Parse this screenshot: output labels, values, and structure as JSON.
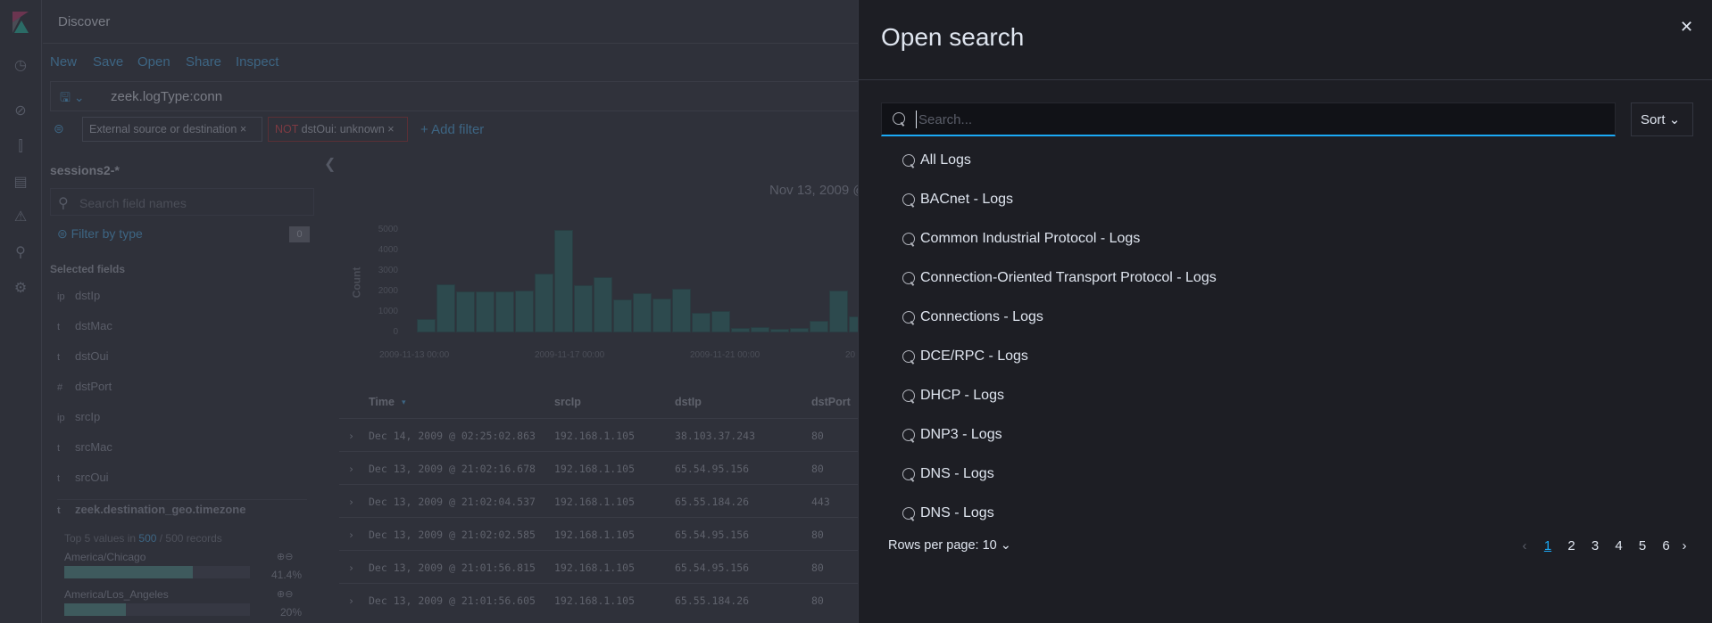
{
  "app": {
    "title": "Discover"
  },
  "nav": {
    "icons": [
      "clock-icon",
      "compass-icon",
      "visualize-icon",
      "dashboard-icon",
      "alert-icon",
      "wrench-icon",
      "gear-icon"
    ]
  },
  "menu": {
    "new": "New",
    "save": "Save",
    "open": "Open",
    "share": "Share",
    "inspect": "Inspect"
  },
  "query": {
    "value": "zeek.logType:conn"
  },
  "filters": [
    {
      "label": "External source or destination"
    },
    {
      "prefix": "NOT",
      "label": "dstOui: unknown"
    }
  ],
  "add_filter": "+ Add filter",
  "sidebar": {
    "index": "sessions2-*",
    "search_placeholder": "Search field names",
    "filter_by_type": "Filter by type",
    "filter_count": "0",
    "selected_fields": "Selected fields",
    "fields": [
      {
        "type": "ip",
        "name": "dstIp"
      },
      {
        "type": "t",
        "name": "dstMac"
      },
      {
        "type": "t",
        "name": "dstOui"
      },
      {
        "type": "#",
        "name": "dstPort"
      },
      {
        "type": "ip",
        "name": "srcIp"
      },
      {
        "type": "t",
        "name": "srcMac"
      },
      {
        "type": "t",
        "name": "srcOui"
      }
    ],
    "expanded": {
      "type": "t",
      "name": "zeek.destination_geo.timezone",
      "top_prefix": "Top 5 values in ",
      "top_count": "500",
      "top_suffix": " / 500 records",
      "values": [
        {
          "name": "America/Chicago",
          "pct": "41.4%",
          "fraction": 0.414
        },
        {
          "name": "America/Los_Angeles",
          "pct": "20%",
          "fraction": 0.2
        }
      ]
    }
  },
  "chart_data": {
    "type": "bar",
    "title": "Nov 13, 2009 @",
    "ylabel": "Count",
    "ylim": [
      0,
      5000
    ],
    "yticks": [
      "5000",
      "4000",
      "3000",
      "2000",
      "1000",
      "0"
    ],
    "xticks": [
      "2009-11-13 00:00",
      "2009-11-17 00:00",
      "2009-11-21 00:00",
      "20"
    ],
    "values": [
      650,
      2350,
      2000,
      2020,
      2000,
      2050,
      2850,
      5000,
      2300,
      2700,
      1600,
      1900,
      1650,
      2150,
      950,
      1050,
      200,
      250,
      180,
      200,
      550,
      2050,
      800
    ]
  },
  "table": {
    "headers": [
      "Time",
      "srcIp",
      "dstIp",
      "dstPort"
    ],
    "rows": [
      [
        "Dec 14, 2009 @ 02:25:02.863",
        "192.168.1.105",
        "38.103.37.243",
        "80"
      ],
      [
        "Dec 13, 2009 @ 21:02:16.678",
        "192.168.1.105",
        "65.54.95.156",
        "80"
      ],
      [
        "Dec 13, 2009 @ 21:02:04.537",
        "192.168.1.105",
        "65.55.184.26",
        "443"
      ],
      [
        "Dec 13, 2009 @ 21:02:02.585",
        "192.168.1.105",
        "65.54.95.156",
        "80"
      ],
      [
        "Dec 13, 2009 @ 21:01:56.815",
        "192.168.1.105",
        "65.54.95.156",
        "80"
      ],
      [
        "Dec 13, 2009 @ 21:01:56.605",
        "192.168.1.105",
        "65.55.184.26",
        "80"
      ]
    ]
  },
  "flyout": {
    "title": "Open search",
    "search_placeholder": "Search...",
    "search_value": "",
    "sort_label": "Sort",
    "items": [
      "All Logs",
      "BACnet - Logs",
      "Common Industrial Protocol - Logs",
      "Connection-Oriented Transport Protocol - Logs",
      "Connections - Logs",
      "DCE/RPC - Logs",
      "DHCP - Logs",
      "DNP3 - Logs",
      "DNS - Logs",
      "DNS - Logs"
    ],
    "rows_per_page": "Rows per page: 10",
    "pages": [
      "1",
      "2",
      "3",
      "4",
      "5",
      "6"
    ],
    "current_page": "1"
  },
  "colors": {
    "accent": "#1ba9f5",
    "flyout_bg": "#1d1e24",
    "bar": "#2d4a4e",
    "not_label": "#7d3a42"
  }
}
